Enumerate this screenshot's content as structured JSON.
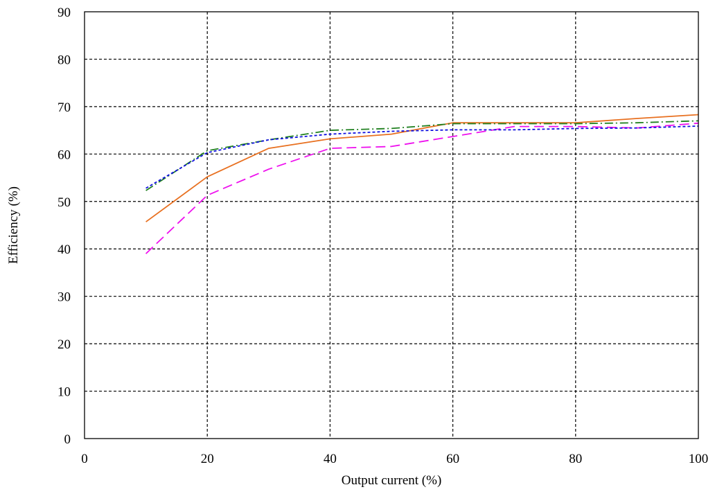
{
  "chart_data": {
    "type": "line",
    "title": "",
    "xlabel": "Output current (%)",
    "ylabel": "Efficiency (%)",
    "xlim": [
      0,
      100
    ],
    "ylim": [
      0,
      90
    ],
    "xticks": [
      0,
      20,
      40,
      60,
      80,
      100
    ],
    "yticks": [
      0,
      10,
      20,
      30,
      40,
      50,
      60,
      70,
      80,
      90
    ],
    "grid": true,
    "grid_style": "dashed",
    "legend": "none",
    "series": [
      {
        "color": "#E87020",
        "dash": "solid",
        "x": [
          10,
          20,
          30,
          40,
          50,
          60,
          70,
          80,
          90,
          100
        ],
        "y": [
          45.7,
          55.2,
          61.2,
          63.2,
          64.2,
          66.6,
          66.6,
          66.6,
          67.5,
          68.3
        ]
      },
      {
        "color": "#EE10EE",
        "dash": "long-dash",
        "x": [
          10,
          20,
          30,
          40,
          50,
          60,
          70,
          80,
          90,
          100
        ],
        "y": [
          39.0,
          51.3,
          56.8,
          61.2,
          61.6,
          63.7,
          65.8,
          65.8,
          65.5,
          66.5
        ]
      },
      {
        "color": "#208020",
        "dash": "dash-dot",
        "x": [
          10,
          20,
          30,
          40,
          50,
          60,
          70,
          80,
          90,
          100
        ],
        "y": [
          52.3,
          60.7,
          63.0,
          65.0,
          65.4,
          66.4,
          66.4,
          66.4,
          66.6,
          67.0
        ]
      },
      {
        "color": "#1010E0",
        "dash": "short-dash",
        "x": [
          10,
          20,
          30,
          40,
          50,
          60,
          70,
          80,
          90,
          100
        ],
        "y": [
          52.8,
          60.3,
          63.0,
          64.2,
          64.8,
          65.1,
          65.1,
          65.4,
          65.5,
          65.9
        ]
      }
    ]
  }
}
